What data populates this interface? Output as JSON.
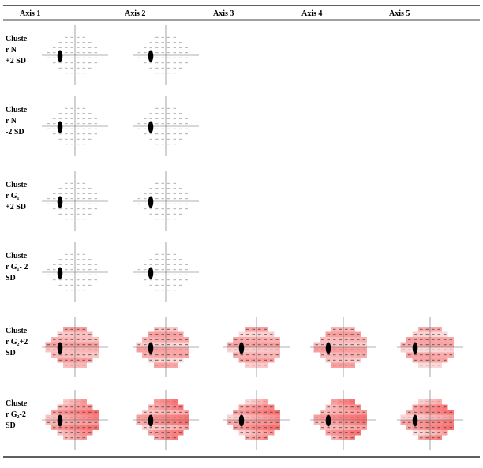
{
  "table": {
    "headers": [
      "Axis 1",
      "Axis 2",
      "Axis 3",
      "Axis 4",
      "Axis 5"
    ],
    "rows": [
      {
        "label": [
          "Cluste",
          "r N",
          "+2 SD"
        ]
      },
      {
        "label": [
          "Cluste",
          "r N",
          "-2 SD"
        ]
      },
      {
        "label": [
          "Cluste",
          "r G₁",
          "+2 SD"
        ]
      },
      {
        "label": [
          "Cluste",
          "r G₁- 2",
          "SD"
        ]
      },
      {
        "label": [
          "Cluste",
          "r G₂+2",
          "SD"
        ]
      },
      {
        "label": [
          "Cluste",
          "r  G₂-2",
          "SD"
        ]
      }
    ]
  }
}
